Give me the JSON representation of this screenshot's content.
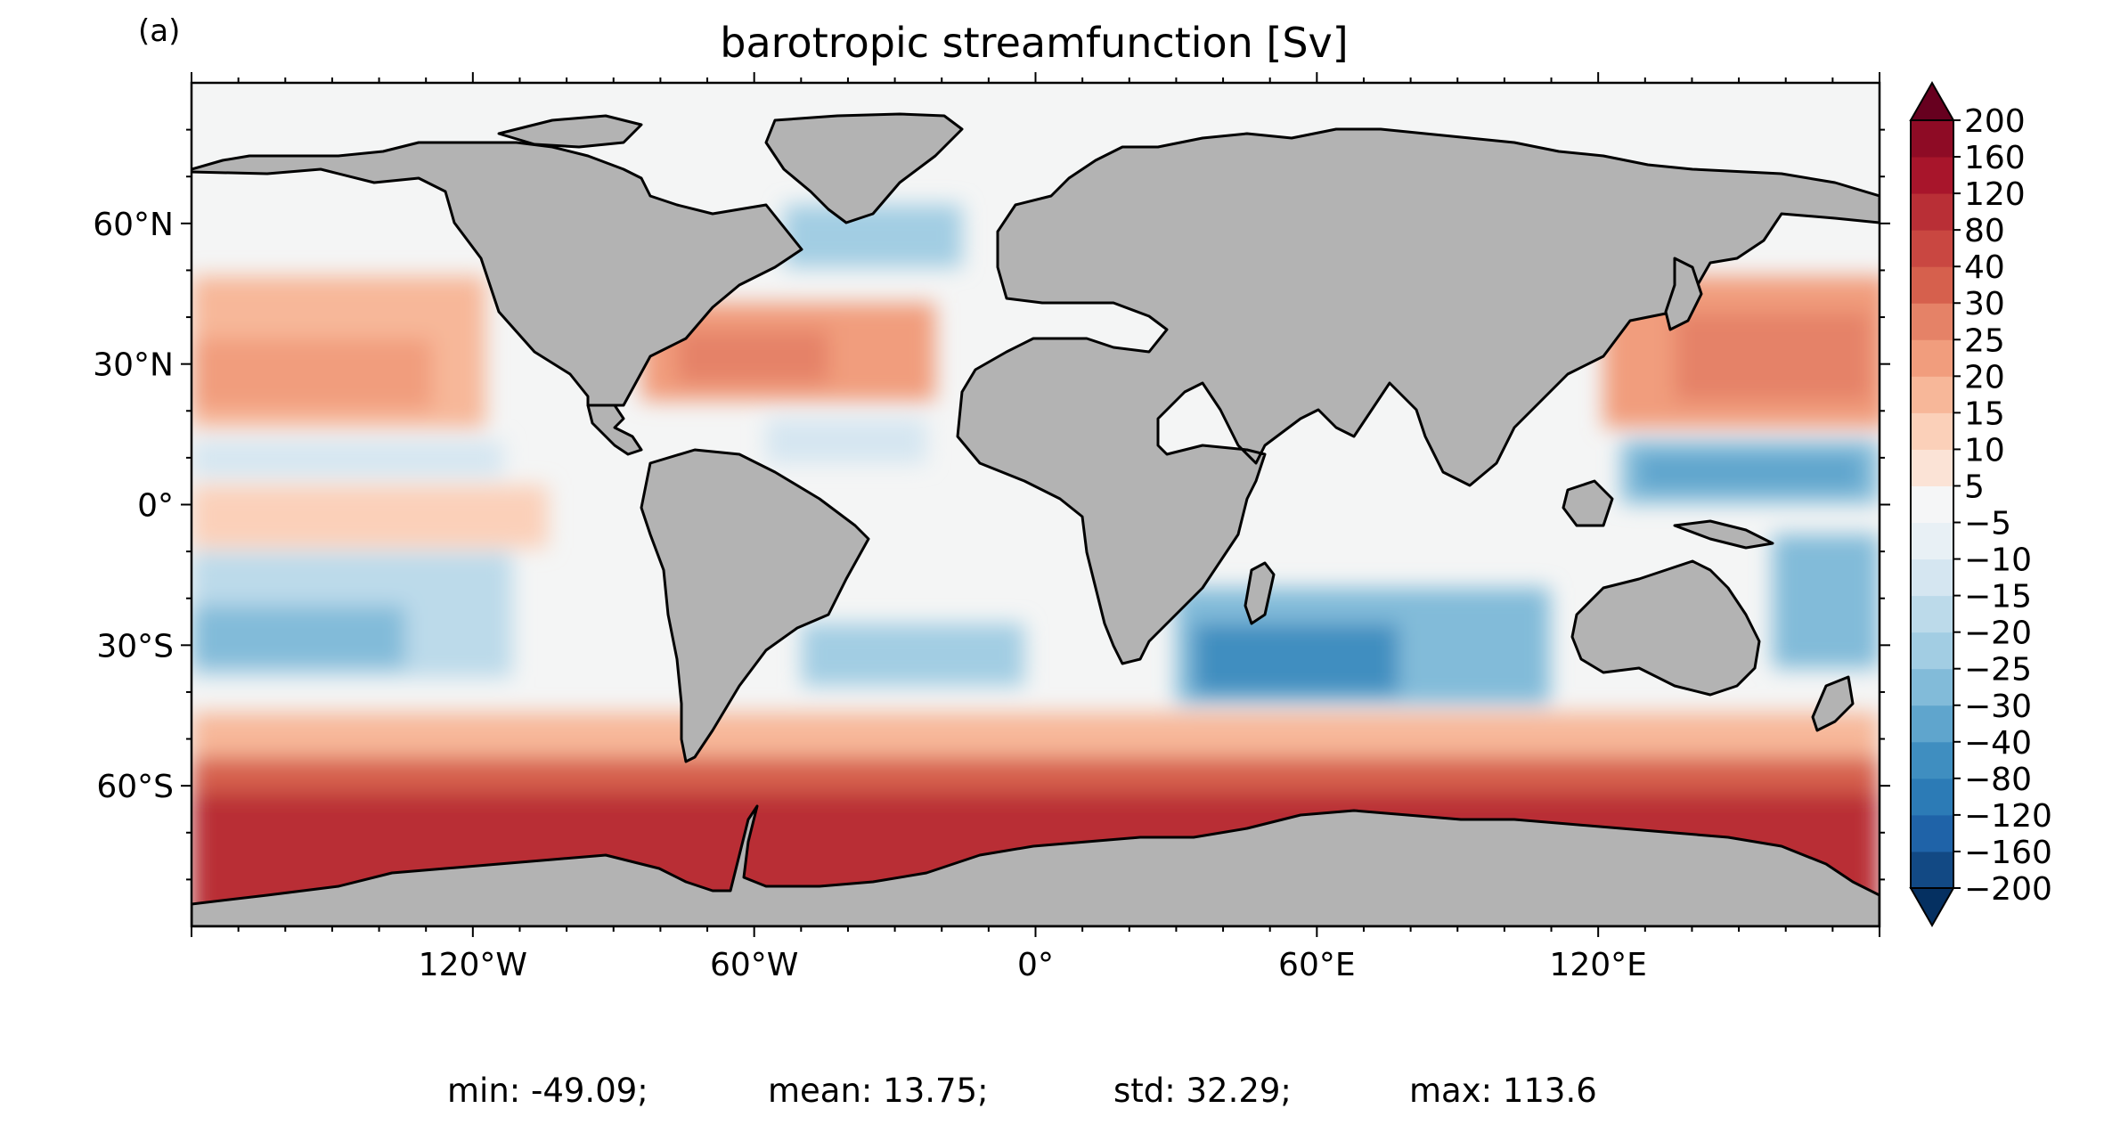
{
  "panel_label": "(a)",
  "title": "barotropic streamfunction [Sv]",
  "lat_ticks": [
    {
      "value": 60,
      "label": "60°N"
    },
    {
      "value": 30,
      "label": "30°N"
    },
    {
      "value": 0,
      "label": "0°"
    },
    {
      "value": -30,
      "label": "30°S"
    },
    {
      "value": -60,
      "label": "60°S"
    }
  ],
  "lon_ticks": [
    {
      "value": -120,
      "label": "120°W"
    },
    {
      "value": -60,
      "label": "60°W"
    },
    {
      "value": 0,
      "label": "0°"
    },
    {
      "value": 60,
      "label": "60°E"
    },
    {
      "value": 120,
      "label": "120°E"
    }
  ],
  "colorbar": {
    "extend": "both",
    "levels": [
      -200,
      -160,
      -120,
      -80,
      -40,
      -30,
      -25,
      -20,
      -15,
      -10,
      -5,
      5,
      10,
      15,
      20,
      25,
      30,
      40,
      80,
      120,
      160,
      200
    ],
    "labels": [
      "200",
      "160",
      "120",
      "80",
      "40",
      "30",
      "25",
      "20",
      "15",
      "10",
      "5",
      "−5",
      "−10",
      "−15",
      "−20",
      "−25",
      "−30",
      "−40",
      "−80",
      "−120",
      "−160",
      "−200"
    ],
    "colors": [
      "#053061",
      "#124984",
      "#1f63a8",
      "#2c7bb6",
      "#3f8ec0",
      "#5fa5cd",
      "#82bbd9",
      "#a2cde3",
      "#bcdaea",
      "#d5e6f1",
      "#e8f0f5",
      "#f5f6f7",
      "#fbe3d6",
      "#fbd0b9",
      "#f7b799",
      "#f19d7d",
      "#e58267",
      "#d6604d",
      "#c94741",
      "#b92f36",
      "#a8152b",
      "#8e0b25",
      "#67001f"
    ]
  },
  "stats": {
    "min": "min: -49.09;",
    "mean": "mean: 13.75;",
    "std": "std: 32.29;",
    "max": "max: 113.6"
  }
}
